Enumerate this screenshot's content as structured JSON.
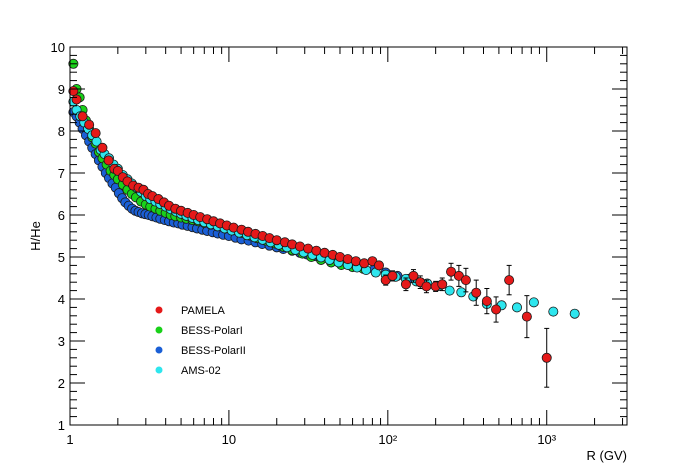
{
  "chart_data": {
    "type": "scatter",
    "xlabel": "R (GV)",
    "ylabel": "H/He",
    "xscale": "log",
    "xlim": [
      1,
      3200
    ],
    "ylim": [
      1,
      10
    ],
    "x_ticks": [
      1,
      10,
      100,
      1000
    ],
    "x_tick_labels": [
      "1",
      "10",
      "10²",
      "10³"
    ],
    "y_ticks": [
      1,
      2,
      3,
      4,
      5,
      6,
      7,
      8,
      9,
      10
    ],
    "y_tick_labels": [
      "1",
      "2",
      "3",
      "4",
      "5",
      "6",
      "7",
      "8",
      "9",
      "10"
    ],
    "legend_position": "lower-left",
    "series": [
      {
        "name": "BESS-PolarII",
        "color": "#1a5fd6",
        "points": [
          [
            1.05,
            8.45
          ],
          [
            1.1,
            8.35
          ],
          [
            1.15,
            8.2
          ],
          [
            1.2,
            8.05
          ],
          [
            1.26,
            7.9
          ],
          [
            1.32,
            7.75
          ],
          [
            1.38,
            7.6
          ],
          [
            1.45,
            7.45
          ],
          [
            1.52,
            7.3
          ],
          [
            1.6,
            7.15
          ],
          [
            1.68,
            7.0
          ],
          [
            1.76,
            6.88
          ],
          [
            1.85,
            6.75
          ],
          [
            1.94,
            6.65
          ],
          [
            2.03,
            6.52
          ],
          [
            2.13,
            6.4
          ],
          [
            2.23,
            6.3
          ],
          [
            2.34,
            6.22
          ],
          [
            2.46,
            6.15
          ],
          [
            2.58,
            6.1
          ],
          [
            2.7,
            6.07
          ],
          [
            2.84,
            6.04
          ],
          [
            2.98,
            6.02
          ],
          [
            3.13,
            6.0
          ],
          [
            3.3,
            5.97
          ],
          [
            3.5,
            5.94
          ],
          [
            3.7,
            5.91
          ],
          [
            3.95,
            5.88
          ],
          [
            4.2,
            5.85
          ],
          [
            4.5,
            5.82
          ],
          [
            4.8,
            5.8
          ],
          [
            5.1,
            5.77
          ],
          [
            5.5,
            5.74
          ],
          [
            5.9,
            5.71
          ],
          [
            6.3,
            5.68
          ],
          [
            6.8,
            5.65
          ],
          [
            7.3,
            5.62
          ],
          [
            7.9,
            5.59
          ],
          [
            8.5,
            5.56
          ],
          [
            9.2,
            5.53
          ],
          [
            10,
            5.5
          ],
          [
            11,
            5.46
          ],
          [
            12,
            5.42
          ],
          [
            13.3,
            5.39
          ],
          [
            14.7,
            5.35
          ],
          [
            16.2,
            5.31
          ],
          [
            18,
            5.27
          ],
          [
            20,
            5.23
          ],
          [
            22,
            5.19
          ],
          [
            25,
            5.15
          ],
          [
            28,
            5.1
          ],
          [
            31,
            5.06
          ],
          [
            35,
            5.02
          ],
          [
            40,
            4.98
          ],
          [
            45,
            4.93
          ],
          [
            52,
            4.88
          ],
          [
            60,
            4.82
          ],
          [
            70,
            4.76
          ],
          [
            82,
            4.7
          ],
          [
            97,
            4.63
          ],
          [
            115,
            4.55
          ],
          [
            135,
            4.48
          ],
          [
            160,
            4.4
          ]
        ]
      },
      {
        "name": "BESS-PolarI",
        "color": "#19d119",
        "points": [
          [
            1.05,
            9.6
          ],
          [
            1.1,
            9.0
          ],
          [
            1.15,
            8.8
          ],
          [
            1.2,
            8.5
          ],
          [
            1.26,
            8.25
          ],
          [
            1.32,
            8.05
          ],
          [
            1.38,
            7.85
          ],
          [
            1.45,
            7.7
          ],
          [
            1.52,
            7.5
          ],
          [
            1.6,
            7.35
          ],
          [
            1.7,
            7.2
          ],
          [
            1.8,
            7.05
          ],
          [
            1.9,
            6.95
          ],
          [
            2.0,
            6.85
          ],
          [
            2.15,
            6.72
          ],
          [
            2.3,
            6.6
          ],
          [
            2.45,
            6.5
          ],
          [
            2.6,
            6.42
          ],
          [
            2.8,
            6.32
          ],
          [
            3.0,
            6.25
          ],
          [
            3.2,
            6.2
          ],
          [
            3.45,
            6.15
          ],
          [
            3.7,
            6.1
          ],
          [
            4.0,
            6.05
          ],
          [
            4.3,
            6.0
          ],
          [
            4.6,
            5.97
          ],
          [
            5.0,
            5.94
          ],
          [
            5.4,
            5.91
          ],
          [
            5.9,
            5.88
          ],
          [
            6.4,
            5.85
          ],
          [
            7.0,
            5.81
          ],
          [
            7.7,
            5.77
          ],
          [
            8.5,
            5.73
          ],
          [
            9.5,
            5.68
          ],
          [
            10.5,
            5.63
          ],
          [
            12,
            5.57
          ],
          [
            13.5,
            5.51
          ],
          [
            15,
            5.45
          ],
          [
            17,
            5.39
          ],
          [
            19.5,
            5.32
          ],
          [
            22,
            5.24
          ],
          [
            25,
            5.16
          ],
          [
            29,
            5.08
          ],
          [
            33,
            5.0
          ],
          [
            38,
            4.93
          ],
          [
            44,
            4.87
          ],
          [
            51,
            4.81
          ],
          [
            60,
            4.76
          ],
          [
            70,
            4.72
          ]
        ]
      },
      {
        "name": "AMS-02",
        "color": "#2ee6ee",
        "points": [
          [
            1.05,
            8.7
          ],
          [
            1.1,
            8.5
          ],
          [
            1.16,
            8.35
          ],
          [
            1.23,
            8.2
          ],
          [
            1.3,
            8.05
          ],
          [
            1.38,
            7.9
          ],
          [
            1.47,
            7.75
          ],
          [
            1.56,
            7.55
          ],
          [
            1.65,
            7.45
          ],
          [
            1.76,
            7.35
          ],
          [
            1.88,
            7.2
          ],
          [
            2.0,
            7.1
          ],
          [
            2.15,
            6.95
          ],
          [
            2.3,
            6.85
          ],
          [
            2.45,
            6.75
          ],
          [
            2.62,
            6.65
          ],
          [
            2.8,
            6.55
          ],
          [
            3.0,
            6.45
          ],
          [
            3.2,
            6.38
          ],
          [
            3.45,
            6.32
          ],
          [
            3.7,
            6.26
          ],
          [
            4.0,
            6.2
          ],
          [
            4.3,
            6.14
          ],
          [
            4.65,
            6.08
          ],
          [
            5.0,
            6.03
          ],
          [
            5.4,
            5.98
          ],
          [
            5.9,
            5.93
          ],
          [
            6.4,
            5.88
          ],
          [
            7.0,
            5.83
          ],
          [
            7.7,
            5.78
          ],
          [
            8.5,
            5.73
          ],
          [
            9.4,
            5.68
          ],
          [
            10.4,
            5.63
          ],
          [
            11.6,
            5.58
          ],
          [
            13,
            5.52
          ],
          [
            14.5,
            5.47
          ],
          [
            16.3,
            5.41
          ],
          [
            18.3,
            5.35
          ],
          [
            20.6,
            5.29
          ],
          [
            23.2,
            5.23
          ],
          [
            26.2,
            5.17
          ],
          [
            29.6,
            5.11
          ],
          [
            33.6,
            5.05
          ],
          [
            38,
            4.99
          ],
          [
            43,
            4.93
          ],
          [
            49,
            4.87
          ],
          [
            56,
            4.81
          ],
          [
            64,
            4.75
          ],
          [
            73,
            4.69
          ],
          [
            84,
            4.63
          ],
          [
            97,
            4.58
          ],
          [
            112,
            4.53
          ],
          [
            130,
            4.48
          ],
          [
            151,
            4.42
          ],
          [
            177,
            4.37
          ],
          [
            208,
            4.31
          ],
          [
            245,
            4.2
          ],
          [
            290,
            4.16
          ],
          [
            345,
            4.06
          ],
          [
            420,
            3.88
          ],
          [
            520,
            3.85
          ],
          [
            650,
            3.8
          ],
          [
            830,
            3.92
          ],
          [
            1100,
            3.7
          ],
          [
            1500,
            3.65
          ]
        ]
      },
      {
        "name": "PAMELA",
        "color": "#e51919",
        "points": [
          [
            1.05,
            8.95
          ],
          [
            1.1,
            8.75
          ],
          [
            1.2,
            8.35
          ],
          [
            1.32,
            8.15
          ],
          [
            1.45,
            7.95
          ],
          [
            1.6,
            7.6
          ],
          [
            1.75,
            7.3
          ],
          [
            1.9,
            7.1
          ],
          [
            2.0,
            7.05
          ],
          [
            2.15,
            6.9
          ],
          [
            2.3,
            6.8
          ],
          [
            2.5,
            6.7
          ],
          [
            2.7,
            6.65
          ],
          [
            2.9,
            6.6
          ],
          [
            3.1,
            6.5
          ],
          [
            3.3,
            6.45
          ],
          [
            3.6,
            6.38
          ],
          [
            3.9,
            6.3
          ],
          [
            4.2,
            6.22
          ],
          [
            4.6,
            6.15
          ],
          [
            5.0,
            6.1
          ],
          [
            5.5,
            6.05
          ],
          [
            6.0,
            6.0
          ],
          [
            6.6,
            5.95
          ],
          [
            7.3,
            5.9
          ],
          [
            8.0,
            5.85
          ],
          [
            8.8,
            5.8
          ],
          [
            9.7,
            5.75
          ],
          [
            10.7,
            5.7
          ],
          [
            12,
            5.65
          ],
          [
            13.2,
            5.6
          ],
          [
            14.7,
            5.55
          ],
          [
            16.3,
            5.5
          ],
          [
            18,
            5.45
          ],
          [
            20,
            5.4
          ],
          [
            22.5,
            5.35
          ],
          [
            25,
            5.3
          ],
          [
            28,
            5.25
          ],
          [
            31.5,
            5.2
          ],
          [
            35.5,
            5.15
          ],
          [
            40,
            5.1
          ],
          [
            45,
            5.05
          ],
          [
            50,
            5.0
          ],
          [
            56,
            4.95
          ],
          [
            63,
            4.9
          ],
          [
            71,
            4.85
          ],
          [
            80,
            4.9
          ],
          [
            88,
            4.8
          ],
          [
            97,
            4.45
          ],
          [
            107,
            4.55
          ],
          [
            130,
            4.35
          ],
          [
            145,
            4.55
          ],
          [
            160,
            4.4
          ],
          [
            175,
            4.3
          ],
          [
            200,
            4.3
          ],
          [
            220,
            4.35
          ],
          [
            250,
            4.65
          ],
          [
            280,
            4.55
          ],
          [
            310,
            4.45
          ],
          [
            360,
            4.15
          ],
          [
            420,
            3.95
          ],
          [
            480,
            3.75
          ],
          [
            580,
            4.45
          ],
          [
            750,
            3.58
          ],
          [
            1000,
            2.6
          ]
        ],
        "errors": [
          [
            97,
            0.12
          ],
          [
            107,
            0.12
          ],
          [
            130,
            0.15
          ],
          [
            145,
            0.15
          ],
          [
            160,
            0.15
          ],
          [
            175,
            0.15
          ],
          [
            200,
            0.12
          ],
          [
            220,
            0.15
          ],
          [
            250,
            0.2
          ],
          [
            280,
            0.25
          ],
          [
            310,
            0.28
          ],
          [
            360,
            0.3
          ],
          [
            420,
            0.3
          ],
          [
            480,
            0.3
          ],
          [
            580,
            0.35
          ],
          [
            750,
            0.5
          ],
          [
            1000,
            0.7
          ]
        ]
      }
    ]
  }
}
